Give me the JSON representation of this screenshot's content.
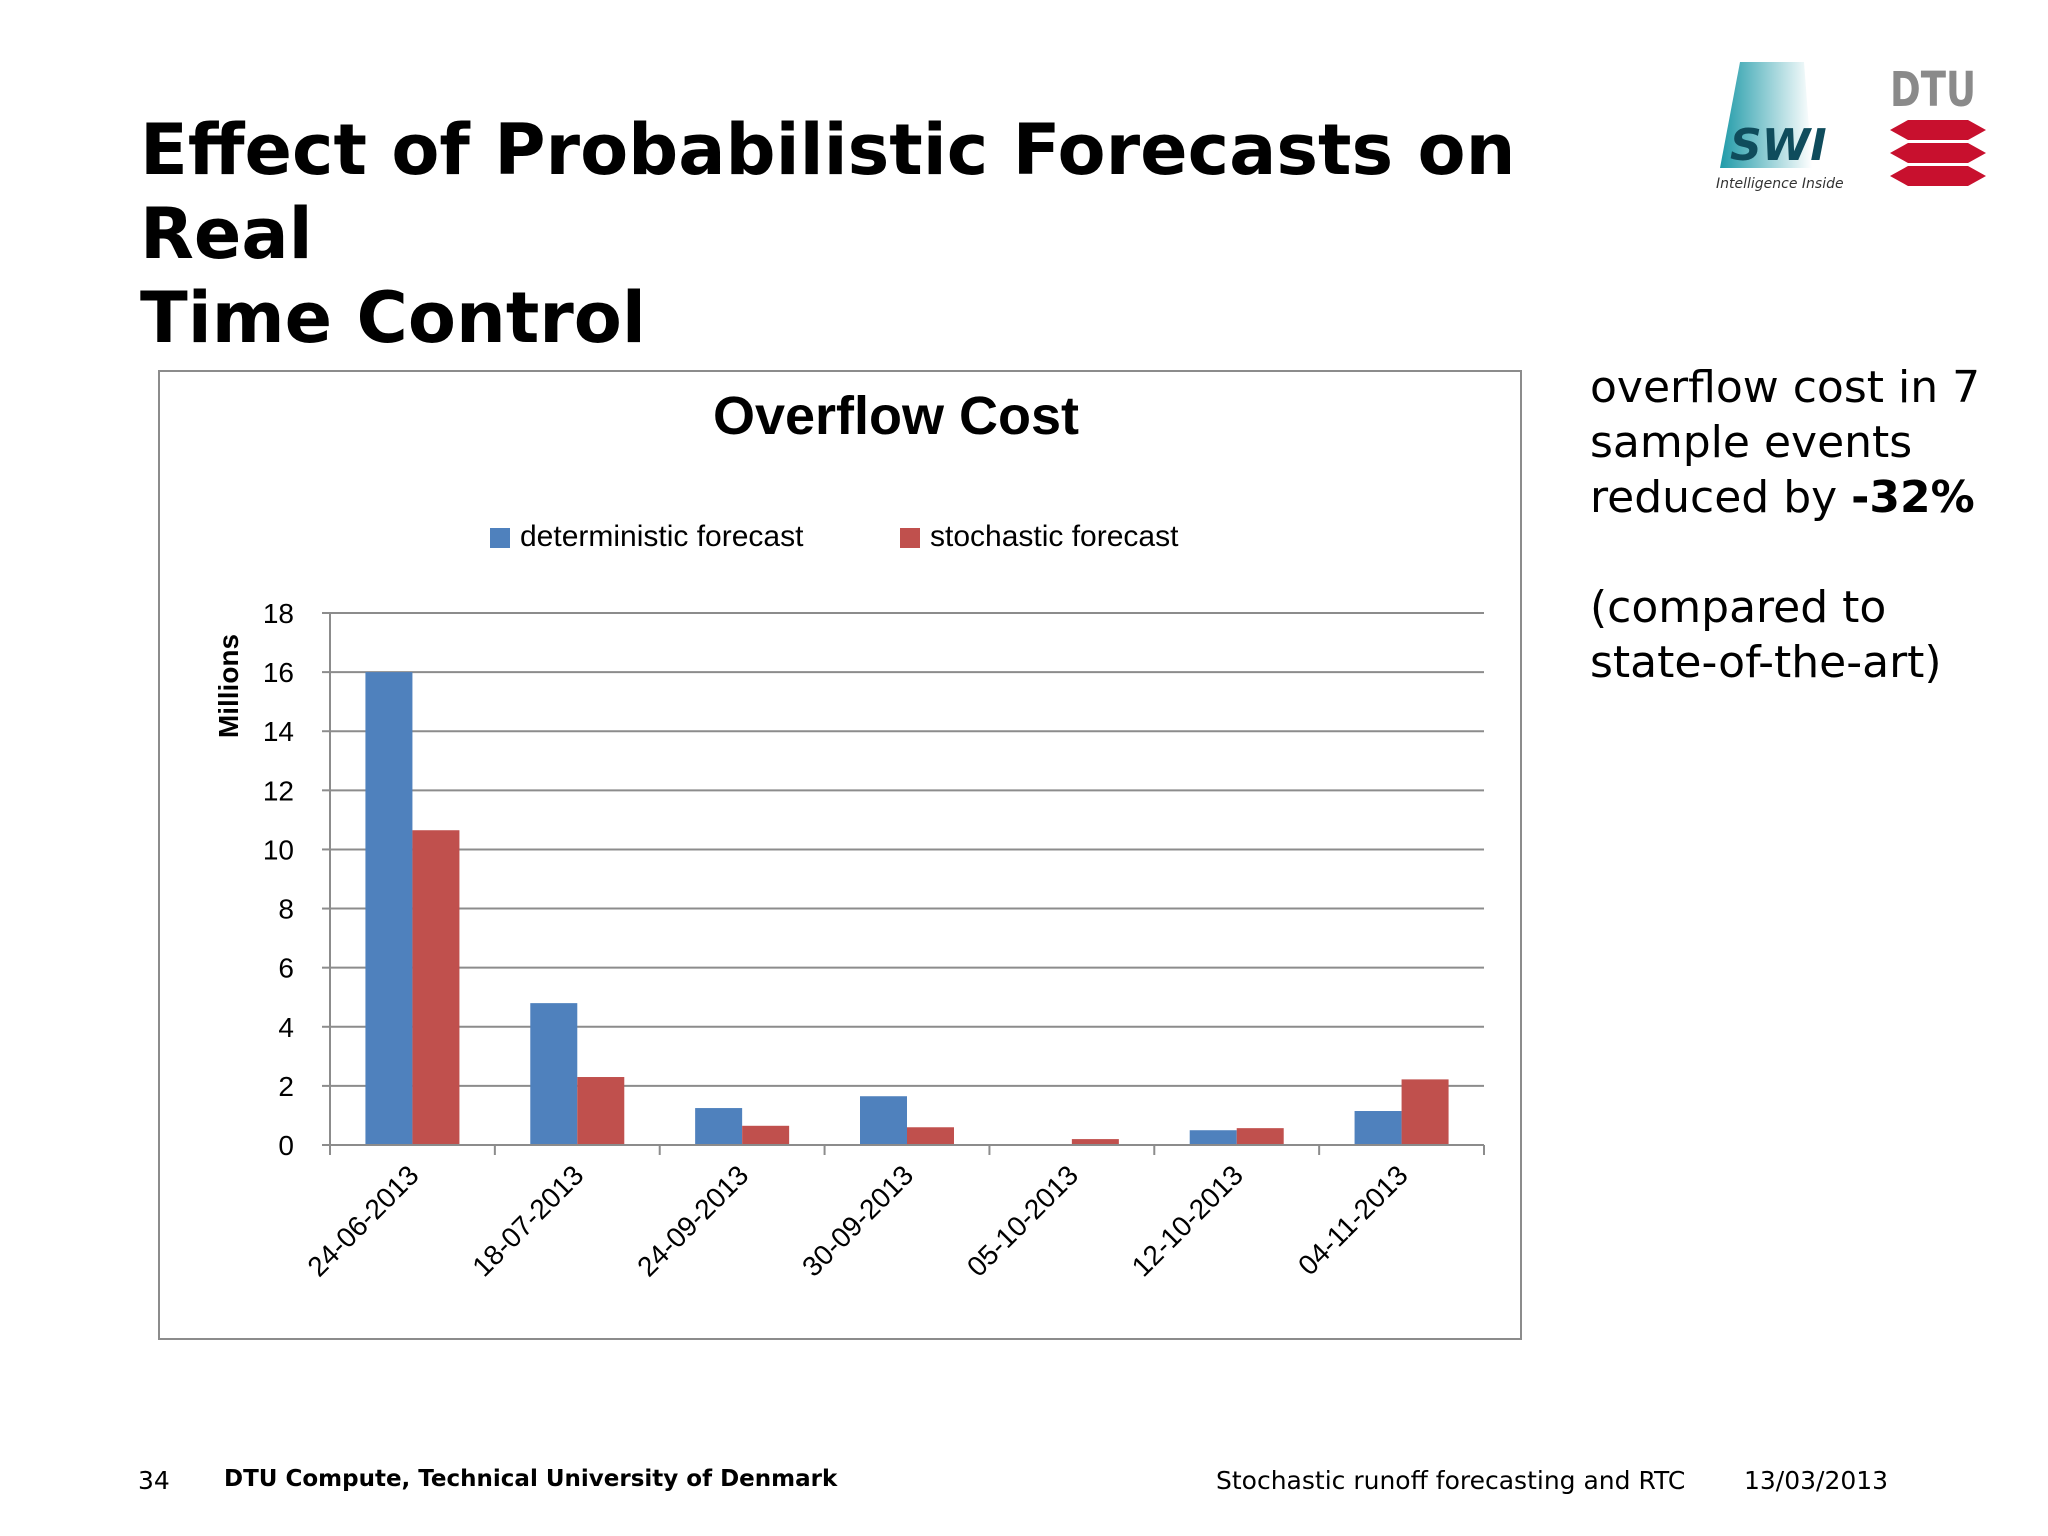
{
  "slide": {
    "title_line1": "Effect of Probabilistic Forecasts on Real",
    "title_line2": "Time Control"
  },
  "logos": {
    "swi_text": "SWI",
    "swi_tagline": "Intelligence Inside",
    "dtu_text": "DTU",
    "swi_color": "#2aa5b3",
    "dtu_color": "#c8102e"
  },
  "side": {
    "line1": "overflow cost in 7",
    "line2": "sample events",
    "line3_prefix": "reduced by ",
    "line3_value": "-32%",
    "note_line1": "(compared to",
    "note_line2": "state-of-the-art)"
  },
  "footer": {
    "page": "34",
    "org": "DTU Compute, Technical University of Denmark",
    "topic": "Stochastic runoff forecasting and RTC",
    "date": "13/03/2013"
  },
  "chart_data": {
    "type": "bar",
    "title": "Overflow Cost",
    "ylabel": "Millions",
    "xlabel": "",
    "categories": [
      "24-06-2013",
      "18-07-2013",
      "24-09-2013",
      "30-09-2013",
      "05-10-2013",
      "12-10-2013",
      "04-11-2013"
    ],
    "series": [
      {
        "name": "deterministic forecast",
        "color": "#4f81bd",
        "values": [
          16.0,
          4.8,
          1.25,
          1.65,
          0.0,
          0.5,
          1.15
        ]
      },
      {
        "name": "stochastic forecast",
        "color": "#c0504d",
        "values": [
          10.65,
          2.3,
          0.65,
          0.6,
          0.2,
          0.57,
          2.22
        ]
      }
    ],
    "ylim": [
      0,
      18
    ],
    "yticks": [
      0,
      2,
      4,
      6,
      8,
      10,
      12,
      14,
      16,
      18
    ],
    "grid": true,
    "legend_position": "top-center"
  }
}
